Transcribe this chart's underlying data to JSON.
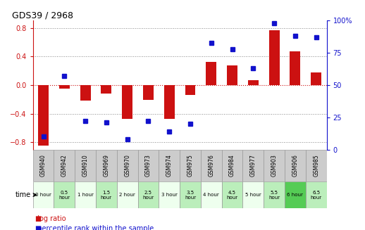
{
  "title": "GDS39 / 2968",
  "samples": [
    "GSM940",
    "GSM942",
    "GSM910",
    "GSM969",
    "GSM970",
    "GSM973",
    "GSM974",
    "GSM975",
    "GSM976",
    "GSM984",
    "GSM977",
    "GSM903",
    "GSM906",
    "GSM985"
  ],
  "time_labels": [
    "0 hour",
    "0.5\nhour",
    "1 hour",
    "1.5\nhour",
    "2 hour",
    "2.5\nhour",
    "3 hour",
    "3.5\nhour",
    "4 hour",
    "4.5\nhour",
    "5 hour",
    "5.5\nhour",
    "6 hour",
    "6.5\nhour"
  ],
  "log_ratio": [
    -0.85,
    -0.05,
    -0.22,
    -0.12,
    -0.47,
    -0.21,
    -0.47,
    -0.14,
    0.32,
    0.28,
    0.07,
    0.77,
    0.47,
    0.18
  ],
  "percentile": [
    10,
    57,
    22,
    21,
    8,
    22,
    14,
    20,
    83,
    78,
    63,
    98,
    88,
    87
  ],
  "ylim_left": [
    -0.9,
    0.9
  ],
  "ylim_right": [
    0,
    100
  ],
  "yticks_left": [
    -0.8,
    -0.4,
    0.0,
    0.4,
    0.8
  ],
  "yticks_right": [
    0,
    25,
    50,
    75,
    100
  ],
  "bar_color": "#cc1111",
  "dot_color": "#1111cc",
  "bg_color": "#ffffff",
  "plot_bg": "#ffffff",
  "sample_bg": "#cccccc",
  "sample_border": "#999999",
  "time_color_white": "#eeffee",
  "time_color_green_light": "#bbeebb",
  "time_color_green_bright": "#55cc55",
  "time_color_green_light2": "#cceecc",
  "grid_color": "#888888",
  "zero_line_color": "#cc1111",
  "dotted_color": "#888888",
  "legend_log_color": "#cc1111",
  "legend_dot_color": "#1111cc",
  "time_cell_colors": [
    0,
    1,
    0,
    1,
    0,
    1,
    0,
    1,
    0,
    1,
    0,
    1,
    2,
    1
  ]
}
